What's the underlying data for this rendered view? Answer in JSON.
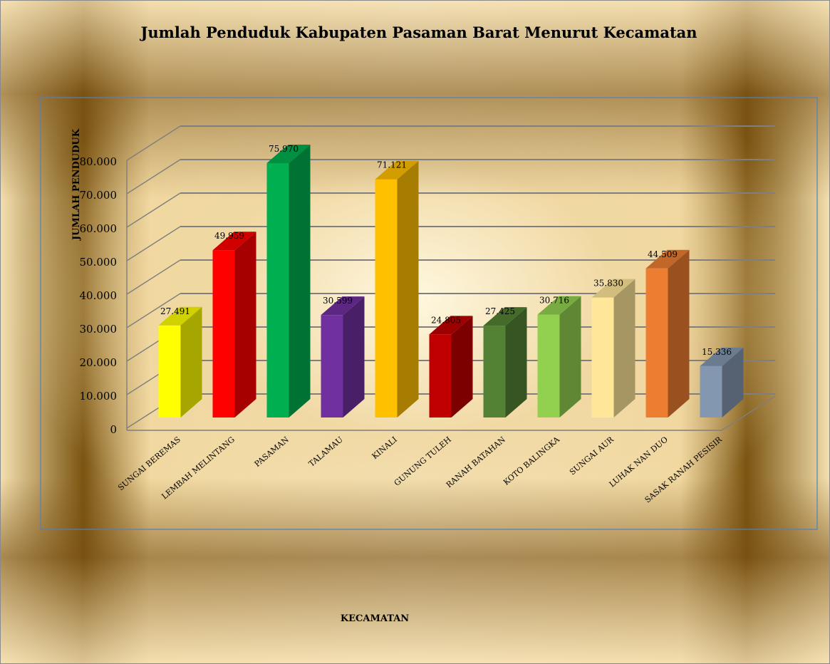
{
  "chart_data": {
    "type": "bar",
    "title": "Jumlah Penduduk Kabupaten Pasaman Barat Menurut Kecamatan",
    "xlabel": "KECAMATAN",
    "ylabel": "JUMLAH PENDUDUK",
    "ylim": [
      0,
      80000
    ],
    "yticks": [
      "0",
      "10.000",
      "20.000",
      "30.000",
      "40.000",
      "50.000",
      "60.000",
      "70.000",
      "80.000"
    ],
    "grid": true,
    "legend": "none",
    "categories": [
      "SUNGAI BEREMAS",
      "LEMBAH MELINTANG",
      "PASAMAN",
      "TALAMAU",
      "KINALI",
      "GUNUNG TULEH",
      "RANAH BATAHAN",
      "KOTO BALINGKA",
      "SUNGAI AUR",
      "LUHAK NAN DUO",
      "SASAK RANAH PESISIR"
    ],
    "values": [
      27491,
      49959,
      75970,
      30599,
      71121,
      24805,
      27425,
      30716,
      35830,
      44509,
      15336
    ],
    "data_labels": [
      "27.491",
      "49.959",
      "75.970",
      "30.599",
      "71.121",
      "24.805",
      "27.425",
      "30.716",
      "35.830",
      "44.509",
      "15.336"
    ],
    "colors": [
      "#ffff00",
      "#ff0000",
      "#00b050",
      "#7030a0",
      "#ffc000",
      "#c00000",
      "#548235",
      "#92d050",
      "#ffe699",
      "#ed7d31",
      "#8497b0"
    ]
  }
}
